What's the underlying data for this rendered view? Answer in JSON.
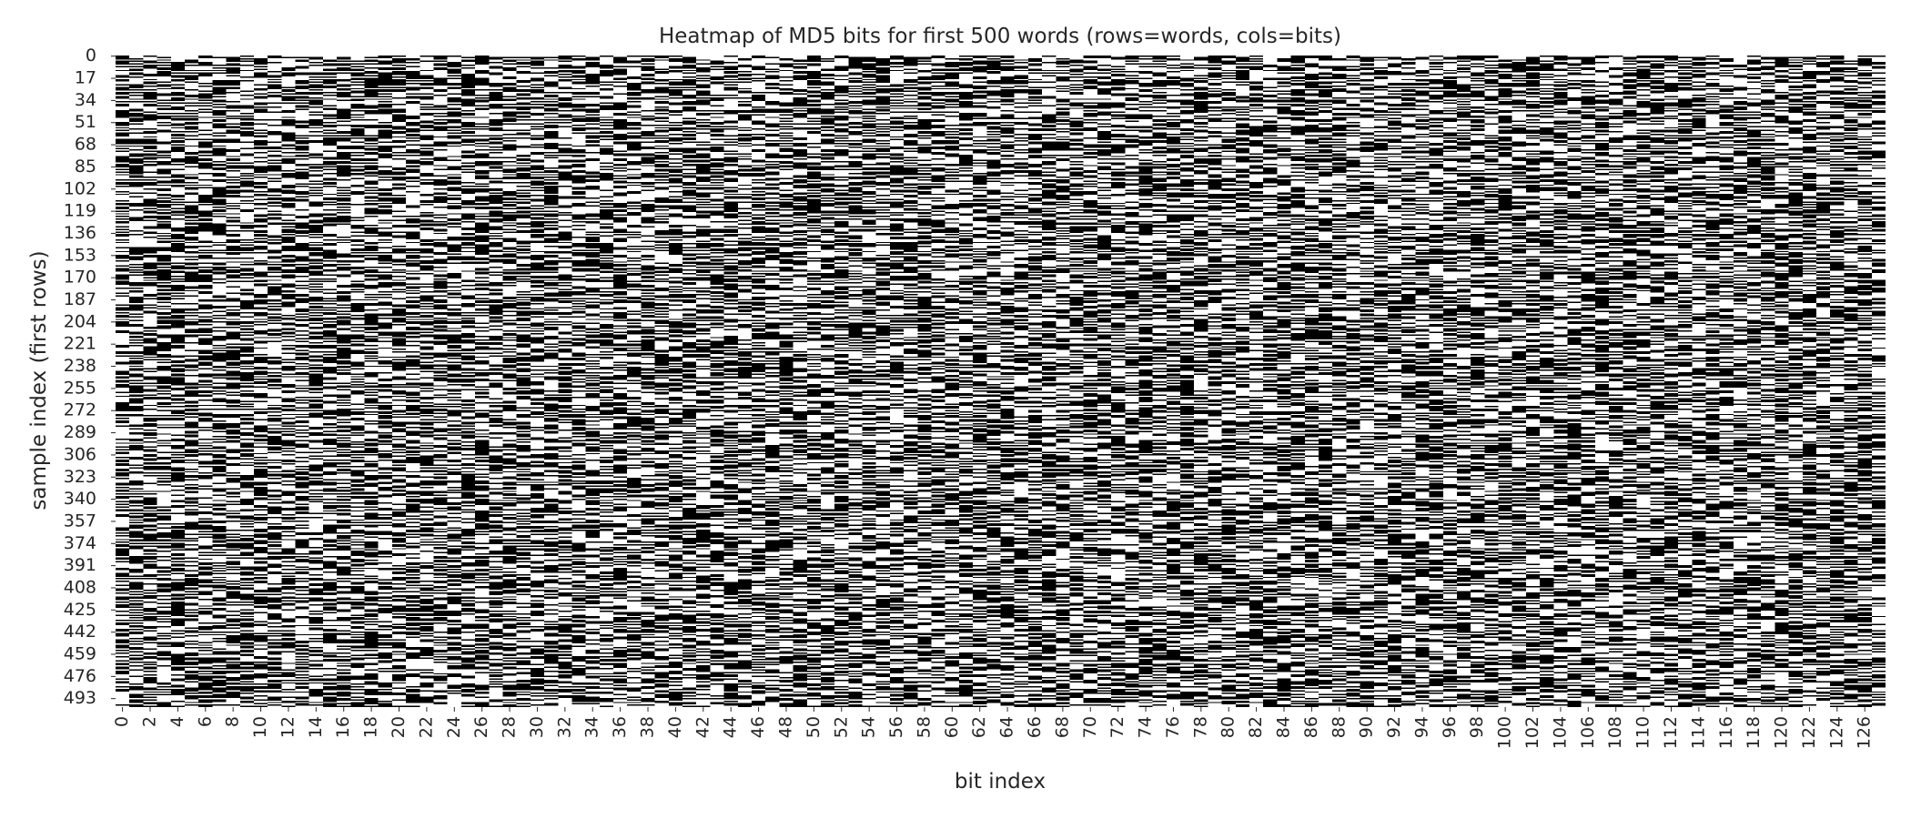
{
  "chart_data": {
    "type": "heatmap",
    "title": "Heatmap of MD5 bits for first 500 words (rows=words, cols=bits)",
    "xlabel": "bit index",
    "ylabel": "sample index (first rows)",
    "n_rows": 500,
    "n_cols": 128,
    "value_range": [
      0,
      1
    ],
    "colormap": {
      "0": "#000000",
      "1": "#ffffff"
    },
    "grid": false,
    "legend": "none",
    "x_ticks": [
      0,
      2,
      4,
      6,
      8,
      10,
      12,
      14,
      16,
      18,
      20,
      22,
      24,
      26,
      28,
      30,
      32,
      34,
      36,
      38,
      40,
      42,
      44,
      46,
      48,
      50,
      52,
      54,
      56,
      58,
      60,
      62,
      64,
      66,
      68,
      70,
      72,
      74,
      76,
      78,
      80,
      82,
      84,
      86,
      88,
      90,
      92,
      94,
      96,
      98,
      100,
      102,
      104,
      106,
      108,
      110,
      112,
      114,
      116,
      118,
      120,
      122,
      124,
      126
    ],
    "y_ticks": [
      0,
      17,
      34,
      51,
      68,
      85,
      102,
      119,
      136,
      153,
      170,
      187,
      204,
      221,
      238,
      255,
      272,
      289,
      306,
      323,
      340,
      357,
      374,
      391,
      408,
      425,
      442,
      459,
      476,
      493
    ]
  }
}
